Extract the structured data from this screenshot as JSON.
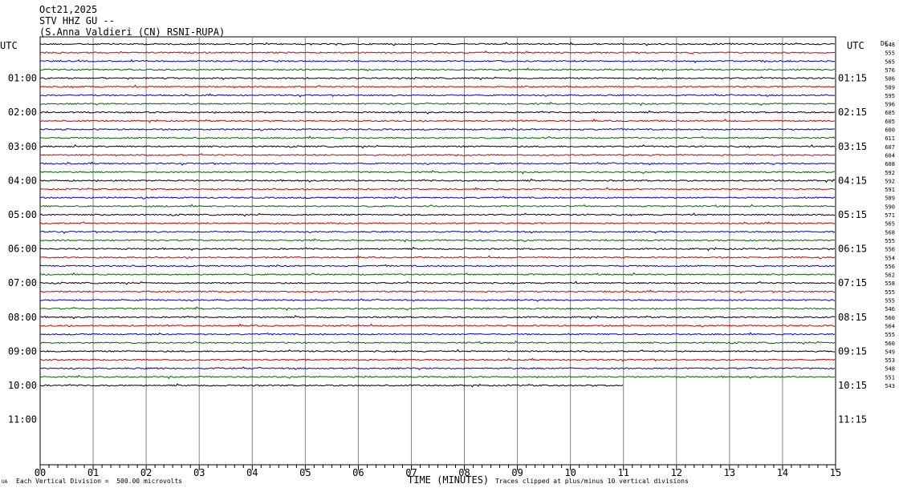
{
  "header": {
    "date": "Oct21,2025",
    "station": "STV HHZ GU --",
    "location": "(S.Anna Valdieri (CN) RSNI-RUPA)"
  },
  "axis": {
    "left_label": "UTC",
    "right_label": "UTC",
    "right_top_label": "DC",
    "x_label": "TIME (MINUTES)"
  },
  "footer": {
    "left": "Each Vertical Division =  500.00 microvolts",
    "right": "Traces clipped at plus/minus 10 vertical divisions",
    "corner": "UA"
  },
  "chart_data": {
    "type": "line",
    "x_ticks": [
      "00",
      "01",
      "02",
      "03",
      "04",
      "05",
      "06",
      "07",
      "08",
      "09",
      "10",
      "11",
      "12",
      "13",
      "14",
      "15"
    ],
    "xlim": [
      0,
      15
    ],
    "left_hour_labels": [
      "01:00",
      "02:00",
      "03:00",
      "04:00",
      "05:00",
      "06:00",
      "07:00",
      "08:00",
      "09:00",
      "10:00",
      "11:00"
    ],
    "right_hour_labels": [
      "01:15",
      "02:15",
      "03:15",
      "04:15",
      "05:15",
      "06:15",
      "07:15",
      "08:15",
      "09:15",
      "10:15",
      "11:15"
    ],
    "trace_colors": [
      "#000000",
      "#cc0000",
      "#0000cc",
      "#006600"
    ],
    "dc_offsets": [
      "548",
      "555",
      "565",
      "576",
      "586",
      "589",
      "595",
      "596",
      "605",
      "605",
      "600",
      "611",
      "607",
      "604",
      "608",
      "592",
      "592",
      "591",
      "589",
      "590",
      "571",
      "565",
      "568",
      "555",
      "556",
      "554",
      "556",
      "562",
      "558",
      "555",
      "555",
      "546",
      "560",
      "564",
      "555",
      "560",
      "549",
      "553",
      "548",
      "551",
      "543"
    ],
    "traces_total": 41,
    "last_trace_end_minute": 11,
    "grid": true
  }
}
